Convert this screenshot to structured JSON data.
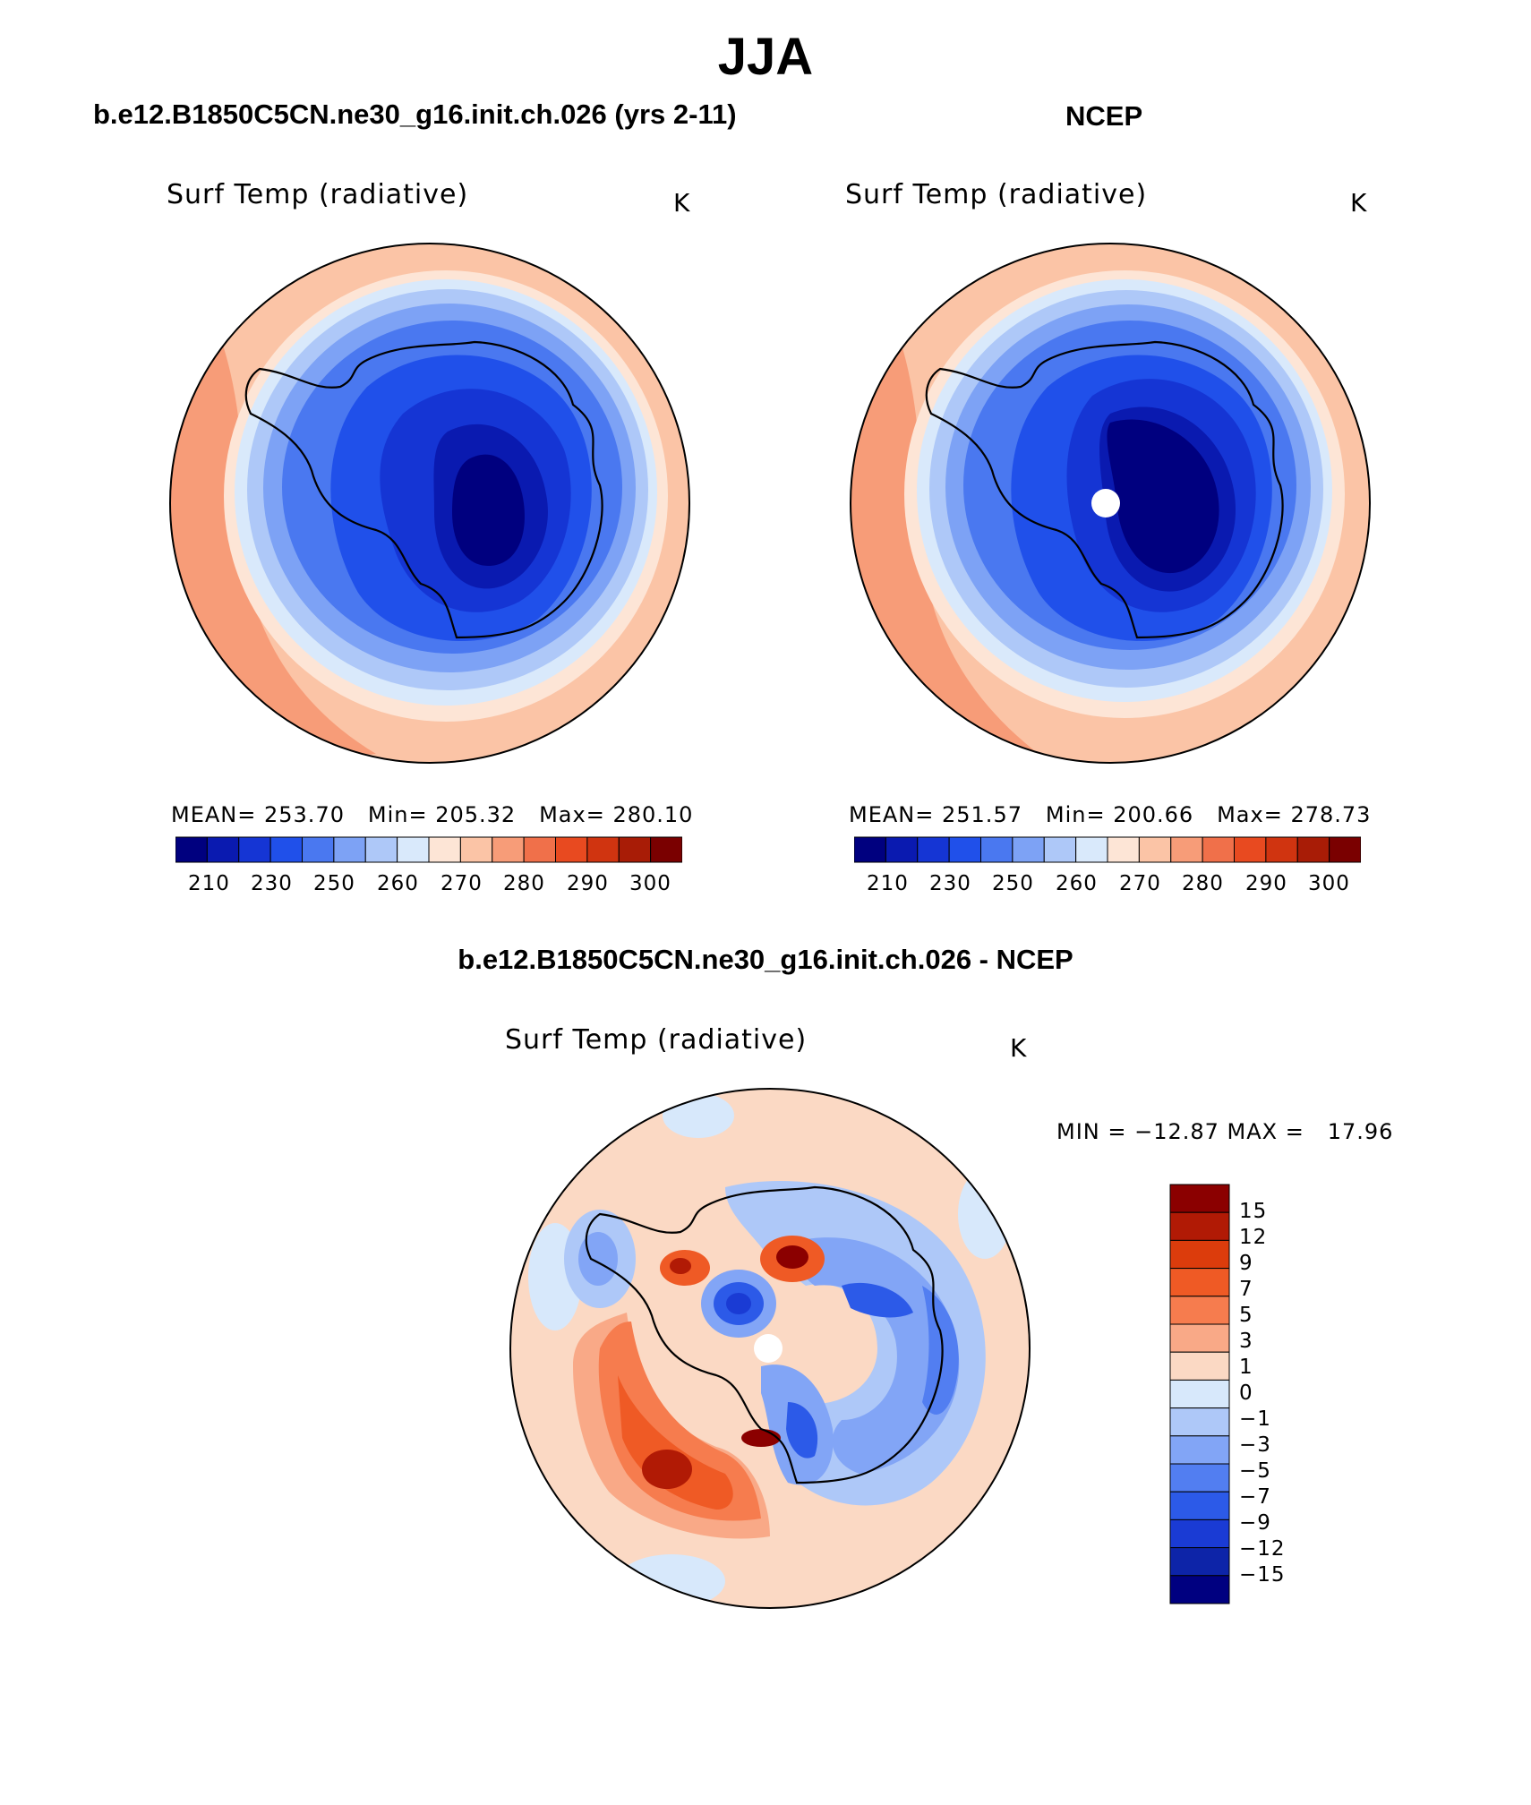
{
  "title": "JJA",
  "top_left": {
    "case": "b.e12.B1850C5CN.ne30_g16.init.ch.026 (yrs 2-11)",
    "variable": "Surf Temp (radiative)",
    "units": "K",
    "mean_label": "MEAN=",
    "mean": "253.70",
    "min_label": "Min=",
    "min": "205.32",
    "max_label": "Max=",
    "max": "280.10"
  },
  "top_right": {
    "case": "NCEP",
    "variable": "Surf Temp (radiative)",
    "units": "K",
    "mean_label": "MEAN=",
    "mean": "251.57",
    "min_label": "Min=",
    "min": "200.66",
    "max_label": "Max=",
    "max": "278.73"
  },
  "abs_colorbar": {
    "colors": [
      "#00007f",
      "#0a1ab0",
      "#1535d4",
      "#2050ea",
      "#4a78f0",
      "#7da2f5",
      "#aec8f8",
      "#d9e9fb",
      "#fde5d6",
      "#fbc4a6",
      "#f79c78",
      "#f0704a",
      "#e84a20",
      "#d03410",
      "#a81c06",
      "#7a0000"
    ],
    "tick_labels": [
      "210",
      "230",
      "250",
      "260",
      "270",
      "280",
      "290",
      "300"
    ]
  },
  "diff": {
    "title": "b.e12.B1850C5CN.ne30_g16.init.ch.026 - NCEP",
    "variable": "Surf Temp (radiative)",
    "units": "K",
    "minmax_text": "MIN = −12.87 MAX =   17.96",
    "colorbar": {
      "colors_top_to_bottom": [
        "#8b0000",
        "#b11a05",
        "#dc3c0c",
        "#ef5a25",
        "#f67c4e",
        "#f9a987",
        "#fbd9c4",
        "#d7e8fb",
        "#aec8f8",
        "#82a5f6",
        "#527ef1",
        "#2c5ae8",
        "#1a3bd4",
        "#0d24a8",
        "#000080"
      ],
      "labels": [
        "15",
        "12",
        "9",
        "7",
        "5",
        "3",
        "1",
        "0",
        "−1",
        "−3",
        "−5",
        "−7",
        "−9",
        "−12",
        "−15"
      ]
    }
  }
}
